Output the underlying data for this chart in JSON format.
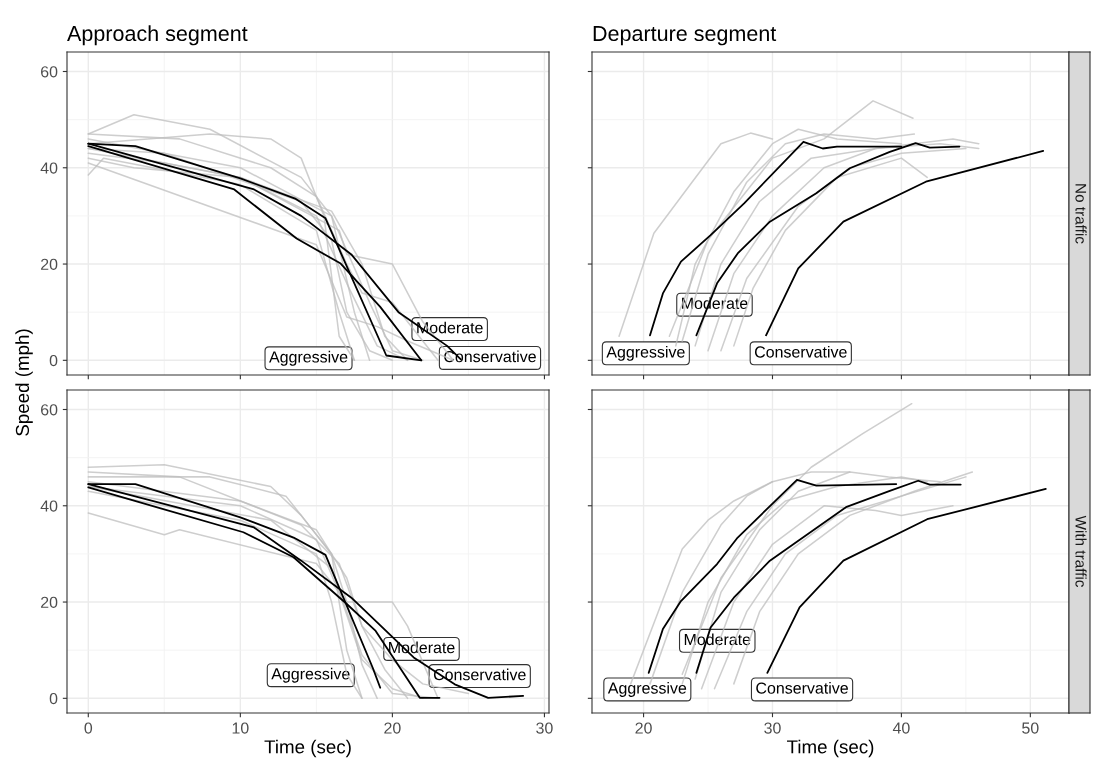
{
  "chart_data": [
    {
      "type": "line",
      "title": "Approach segment",
      "ylabel": "Speed (mph)",
      "xlim": [
        -1.4,
        30.3
      ],
      "ylim": [
        -3.05,
        64.05
      ],
      "xticks": [
        0,
        10,
        20,
        30
      ],
      "yticks": [
        0,
        20,
        40,
        60
      ],
      "grid": true,
      "tick_labels": "y",
      "series": [
        {
          "color": "#bdbdbd",
          "x": [
            0,
            3,
            8,
            14,
            16,
            17.5,
            18.5
          ],
          "values": [
            47,
            51,
            48,
            38,
            30,
            10,
            0
          ]
        },
        {
          "color": "#bdbdbd",
          "x": [
            0,
            8,
            12,
            14,
            15.5,
            16.5,
            17.5
          ],
          "values": [
            45,
            47,
            46,
            42,
            30,
            5,
            0
          ]
        },
        {
          "color": "#bdbdbd",
          "x": [
            0,
            1,
            10,
            15,
            16.5,
            17.5
          ],
          "values": [
            38.5,
            42,
            36.5,
            27,
            10,
            0
          ]
        },
        {
          "color": "#bdbdbd",
          "x": [
            0,
            10,
            16.5,
            17,
            20,
            22,
            24
          ],
          "values": [
            44,
            38,
            27,
            22,
            20,
            8,
            0
          ]
        },
        {
          "color": "#bdbdbd",
          "x": [
            0,
            6,
            12,
            15,
            17,
            18,
            20,
            23
          ],
          "values": [
            47,
            46,
            40,
            34,
            20,
            14,
            12,
            0
          ]
        },
        {
          "color": "#bdbdbd",
          "x": [
            0,
            5,
            10,
            15,
            17,
            19,
            21
          ],
          "values": [
            43,
            41,
            38,
            30,
            16,
            3,
            0
          ]
        },
        {
          "color": "#bdbdbd",
          "x": [
            0,
            15,
            17,
            19,
            21,
            24
          ],
          "values": [
            41,
            24,
            9,
            7,
            4,
            0
          ]
        },
        {
          "color": "#bdbdbd",
          "x": [
            0,
            10,
            16,
            18.5,
            20,
            22
          ],
          "values": [
            46,
            40,
            30,
            12,
            2,
            0
          ]
        },
        {
          "color": "#bdbdbd",
          "x": [
            0,
            5,
            14,
            16,
            17,
            18.5,
            20
          ],
          "values": [
            44,
            43,
            33,
            25,
            10,
            2,
            0
          ]
        },
        {
          "color": "#bdbdbd",
          "x": [
            0,
            3,
            10,
            16,
            18,
            19.5,
            21
          ],
          "values": [
            42,
            40,
            38,
            31,
            20,
            5,
            0
          ]
        },
        {
          "color": "#000000",
          "x": [
            0,
            3.1,
            10,
            13.6,
            15.6,
            19.6,
            21.9
          ],
          "values": [
            45,
            44.5,
            37.8,
            33.6,
            29.5,
            1,
            0
          ]
        },
        {
          "color": "#000000",
          "x": [
            0,
            9.6,
            13.7,
            16.6,
            19.2,
            21.9
          ],
          "values": [
            44.5,
            35.5,
            25.3,
            20.1,
            11.1,
            0
          ]
        },
        {
          "color": "#000000",
          "x": [
            0,
            10.9,
            14,
            17.3,
            20.4,
            23.6,
            24.5
          ],
          "values": [
            45,
            35.5,
            30,
            22,
            10,
            3,
            0.2
          ]
        }
      ],
      "annotations": [
        {
          "text": "Moderate",
          "x": 19.2,
          "y": 11.1
        },
        {
          "text": "Aggressive",
          "x": 19.6,
          "y": 1
        },
        {
          "text": "Conservative",
          "x": 24.5,
          "y": 0.2
        }
      ]
    },
    {
      "type": "line",
      "title": "Departure segment",
      "y2label": "No traffic",
      "xlim": [
        16.0,
        53.0
      ],
      "ylim": [
        -3.05,
        64.05
      ],
      "xticks": [
        20,
        30,
        40,
        50
      ],
      "yticks": [
        0,
        20,
        40,
        60
      ],
      "grid": true,
      "tick_labels": false,
      "series": [
        {
          "color": "#bdbdbd",
          "x": [
            18.1,
            20.8,
            23.7,
            26,
            28.3,
            30
          ],
          "values": [
            5,
            26.4,
            36.8,
            45,
            47.2,
            46
          ]
        },
        {
          "color": "#bdbdbd",
          "x": [
            22,
            25,
            30,
            34,
            37.8,
            40.9
          ],
          "values": [
            5,
            25,
            42,
            46,
            53.9,
            50.3
          ]
        },
        {
          "color": "#bdbdbd",
          "x": [
            22.5,
            24,
            27,
            30,
            32,
            35,
            40
          ],
          "values": [
            3,
            20,
            35,
            45,
            48,
            46,
            45
          ]
        },
        {
          "color": "#bdbdbd",
          "x": [
            24,
            26,
            29,
            33,
            38,
            43,
            46
          ],
          "values": [
            3,
            20,
            33,
            42,
            44,
            45,
            44
          ]
        },
        {
          "color": "#bdbdbd",
          "x": [
            25,
            27,
            30,
            34,
            38,
            44,
            46
          ],
          "values": [
            2,
            18,
            30,
            40,
            44,
            46,
            45
          ]
        },
        {
          "color": "#bdbdbd",
          "x": [
            27,
            28.5,
            31,
            35,
            40,
            42
          ],
          "values": [
            3,
            15,
            27,
            38,
            42,
            38
          ]
        },
        {
          "color": "#bdbdbd",
          "x": [
            23,
            25,
            28,
            31,
            34,
            38,
            41
          ],
          "values": [
            4,
            22,
            37,
            45,
            47,
            46,
            47
          ]
        },
        {
          "color": "#bdbdbd",
          "x": [
            26,
            28,
            32,
            36,
            40,
            45
          ],
          "values": [
            2,
            17,
            32,
            40,
            43,
            44
          ]
        },
        {
          "color": "#000000",
          "x": [
            20.5,
            21.5,
            22.9,
            25.2,
            27.8,
            32.4,
            33.9,
            35,
            37.5,
            40
          ],
          "values": [
            5.2,
            13.9,
            20.5,
            26,
            32.6,
            45.4,
            44,
            44.4,
            44.4,
            44.4
          ]
        },
        {
          "color": "#000000",
          "x": [
            24.1,
            25.7,
            27.3,
            29.8,
            33.4,
            36,
            39.1,
            41.1,
            42.2,
            44.5
          ],
          "values": [
            5.2,
            16,
            22.2,
            28.8,
            34.7,
            39.9,
            43.3,
            45.1,
            44.2,
            44.4
          ]
        },
        {
          "color": "#000000",
          "x": [
            29.5,
            32,
            35.5,
            41.9,
            51.0
          ],
          "values": [
            5.2,
            19.1,
            28.8,
            37.1,
            43.5
          ]
        }
      ],
      "annotations": [
        {
          "text": "Moderate",
          "x": 24.1,
          "y": 5.2
        },
        {
          "text": "Aggressive",
          "x": 20.5,
          "y": 5.2
        },
        {
          "text": "Conservative",
          "x": 29.5,
          "y": 5.2
        }
      ]
    },
    {
      "type": "line",
      "xlabel": "Time (sec)",
      "xlim": [
        -1.4,
        30.3
      ],
      "ylim": [
        -3.05,
        64.05
      ],
      "xticks": [
        0,
        10,
        20,
        30
      ],
      "yticks": [
        0,
        20,
        40,
        60
      ],
      "grid": true,
      "series": [
        {
          "color": "#bdbdbd",
          "x": [
            0,
            5,
            12,
            14,
            16,
            17,
            18
          ],
          "values": [
            48,
            48.5,
            44,
            38,
            30,
            10,
            0
          ]
        },
        {
          "color": "#bdbdbd",
          "x": [
            0,
            5,
            6,
            15,
            17,
            18,
            19
          ],
          "values": [
            38.5,
            34,
            35,
            28,
            20,
            7,
            0
          ]
        },
        {
          "color": "#bdbdbd",
          "x": [
            0,
            8,
            13,
            16,
            17,
            20,
            21,
            23
          ],
          "values": [
            46,
            46,
            42,
            30,
            20,
            20,
            15,
            0
          ]
        },
        {
          "color": "#bdbdbd",
          "x": [
            0,
            10,
            15,
            16.5,
            18,
            20,
            22
          ],
          "values": [
            44,
            40,
            33,
            22,
            8,
            2,
            0
          ]
        },
        {
          "color": "#bdbdbd",
          "x": [
            0,
            6,
            14,
            16.5,
            18,
            19.5,
            21
          ],
          "values": [
            47,
            46,
            36,
            28,
            15,
            6,
            0
          ]
        },
        {
          "color": "#bdbdbd",
          "x": [
            0,
            10,
            15,
            16,
            17,
            18
          ],
          "values": [
            43,
            37,
            30,
            20,
            5,
            0
          ]
        },
        {
          "color": "#bdbdbd",
          "x": [
            0,
            10,
            15,
            17,
            18,
            20,
            22,
            25
          ],
          "values": [
            45,
            41,
            35,
            25,
            15,
            8,
            3,
            1
          ]
        },
        {
          "color": "#bdbdbd",
          "x": [
            0,
            12,
            16,
            18,
            20,
            23
          ],
          "values": [
            44,
            37,
            27,
            9,
            1,
            0
          ]
        },
        {
          "color": "#000000",
          "x": [
            0,
            3.1,
            10,
            13.5,
            15.6,
            18.7,
            19.2
          ],
          "values": [
            44.5,
            44.5,
            37.6,
            33.4,
            29.8,
            6.4,
            2.2
          ]
        },
        {
          "color": "#000000",
          "x": [
            0,
            10.2,
            13.5,
            17,
            18.9,
            21.8,
            23.1
          ],
          "values": [
            43.8,
            34.5,
            29.3,
            19.6,
            14,
            0.1,
            0.1
          ]
        },
        {
          "color": "#000000",
          "x": [
            0,
            10.9,
            14,
            17.3,
            21.4,
            24.1,
            26.3,
            28.6
          ],
          "values": [
            44.5,
            35.5,
            28.6,
            20.9,
            8.5,
            2.9,
            0.1,
            0.5
          ]
        }
      ],
      "annotations": [
        {
          "text": "Moderate",
          "x": 18.9,
          "y": 14
        },
        {
          "text": "Aggressive",
          "x": 19.2,
          "y": 2.2
        },
        {
          "text": "Conservative",
          "x": 24.1,
          "y": 2.9
        }
      ]
    },
    {
      "type": "line",
      "xlabel": "Time (sec)",
      "y2label": "With traffic",
      "xlim": [
        16.0,
        53.0
      ],
      "ylim": [
        -3.05,
        64.05
      ],
      "xticks": [
        20,
        30,
        40,
        50
      ],
      "yticks": [
        0,
        20,
        40,
        60
      ],
      "grid": true,
      "tick_labels": "x",
      "series": [
        {
          "color": "#bdbdbd",
          "x": [
            19,
            21,
            23,
            25,
            27,
            30
          ],
          "values": [
            3,
            17,
            31,
            37,
            41,
            45
          ]
        },
        {
          "color": "#bdbdbd",
          "x": [
            23,
            26,
            30,
            33,
            37,
            40.8
          ],
          "values": [
            5,
            25,
            40,
            48,
            55,
            61.2
          ]
        },
        {
          "color": "#bdbdbd",
          "x": [
            20.5,
            23,
            26,
            28,
            30,
            33,
            36
          ],
          "values": [
            3,
            22,
            36,
            42,
            45,
            47,
            47
          ]
        },
        {
          "color": "#bdbdbd",
          "x": [
            23,
            25,
            28,
            31,
            35,
            40,
            42
          ],
          "values": [
            3,
            20,
            34,
            41,
            44,
            46,
            45
          ]
        },
        {
          "color": "#bdbdbd",
          "x": [
            24.5,
            27,
            30,
            34,
            38,
            40,
            44
          ],
          "values": [
            2,
            20,
            32,
            40,
            39,
            38,
            40
          ]
        },
        {
          "color": "#bdbdbd",
          "x": [
            25.5,
            28,
            31,
            35,
            40,
            45
          ],
          "values": [
            2,
            18,
            30,
            38,
            42,
            46
          ]
        },
        {
          "color": "#bdbdbd",
          "x": [
            27,
            29,
            32,
            36,
            41,
            45.5
          ],
          "values": [
            3,
            18,
            30,
            38,
            43,
            47
          ]
        },
        {
          "color": "#bdbdbd",
          "x": [
            24,
            26,
            29,
            32,
            36,
            39,
            43
          ],
          "values": [
            4,
            22,
            35,
            43,
            47,
            46,
            45
          ]
        },
        {
          "color": "#000000",
          "x": [
            20.4,
            21.5,
            22.9,
            25.7,
            27.3,
            31.9,
            33.4,
            39.6
          ],
          "values": [
            5.3,
            14.4,
            20.2,
            27.9,
            33.4,
            45.4,
            44.2,
            44.5
          ]
        },
        {
          "color": "#000000",
          "x": [
            24.1,
            25.2,
            27,
            29.8,
            35.7,
            39.1,
            41.3,
            42.2,
            44.6
          ],
          "values": [
            5.3,
            14.7,
            20.9,
            28.6,
            39.7,
            43.1,
            45.2,
            44.4,
            44.4
          ]
        },
        {
          "color": "#000000",
          "x": [
            29.6,
            32.1,
            35.5,
            42.0,
            51.2
          ],
          "values": [
            5.3,
            18.9,
            28.6,
            37.2,
            43.5
          ]
        }
      ],
      "annotations": [
        {
          "text": "Moderate",
          "x": 24.1,
          "y": 5.3
        },
        {
          "text": "Aggressive",
          "x": 20.4,
          "y": 5.3
        },
        {
          "text": "Conservative",
          "x": 29.6,
          "y": 5.3
        }
      ]
    }
  ]
}
